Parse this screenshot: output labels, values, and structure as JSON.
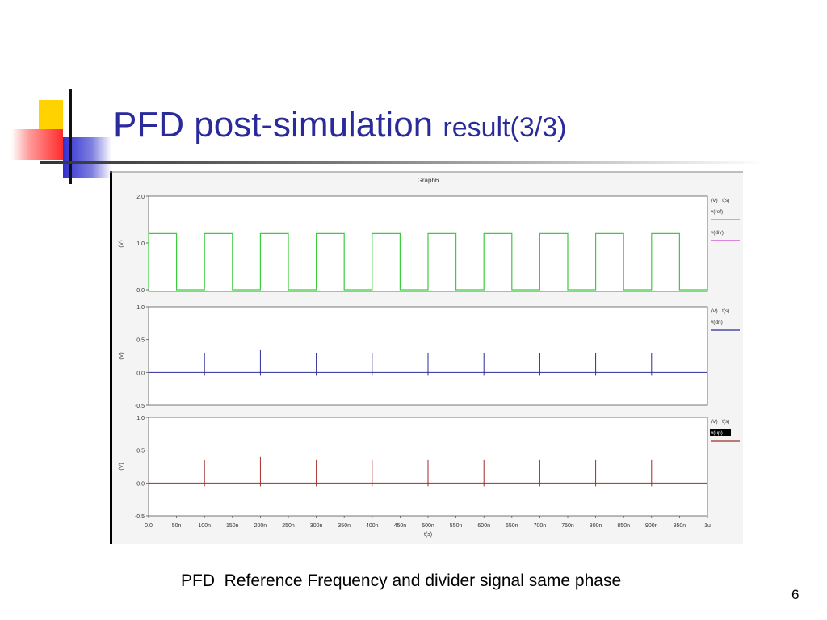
{
  "slide": {
    "title_main": "PFD post-simulation",
    "title_suffix": "result(3/3)",
    "caption": "PFD  Reference Frequency and divider signal same phase",
    "page_number": "6"
  },
  "colors": {
    "title": "#2a2a9a",
    "ref": "#3ccc3c",
    "div": "#cc44cc",
    "dn": "#2b2b99",
    "up": "#a52a2a"
  },
  "chart_data": {
    "type": "line",
    "title": "Graph6",
    "xlabel": "t(s)",
    "x_ticks": [
      "0.0",
      "50n",
      "100n",
      "150n",
      "200n",
      "250n",
      "300n",
      "350n",
      "400n",
      "450n",
      "500n",
      "550n",
      "600n",
      "650n",
      "700n",
      "750n",
      "800n",
      "850n",
      "900n",
      "950n",
      "1u"
    ],
    "xlim_ns": [
      0,
      1000
    ],
    "grid": false,
    "legend_position": "right",
    "panels": [
      {
        "ylabel": "(V)",
        "ylim": [
          0,
          2.0
        ],
        "y_ticks": [
          {
            "v": 2.0,
            "label": "2.0"
          },
          {
            "v": 1.0,
            "label": "1.0"
          },
          {
            "v": 0.0,
            "label": "0.0"
          }
        ],
        "legend_header": "(V) : t(s)",
        "series": [
          {
            "name": "v(ref)",
            "color": "#3ccc3c",
            "kind": "square",
            "period_ns": 100,
            "high_ns": 50,
            "first_rise_ns": 0,
            "low_v": 0.0,
            "high_v": 1.2
          },
          {
            "name": "v(div)",
            "color": "#cc44cc",
            "kind": "legend_only"
          }
        ]
      },
      {
        "ylabel": "(V)",
        "ylim": [
          -0.5,
          1.0
        ],
        "y_ticks": [
          {
            "v": 1.0,
            "label": "1.0"
          },
          {
            "v": 0.5,
            "label": "0.5"
          },
          {
            "v": 0.0,
            "label": "0.0"
          },
          {
            "v": -0.5,
            "label": "-0.5"
          }
        ],
        "legend_header": "(V) : t(s)",
        "series": [
          {
            "name": "v(dn)",
            "color": "#2b2b99",
            "kind": "spikes",
            "baseline_v": 0.0,
            "spikes": [
              {
                "t_ns": 100,
                "peak_v": 0.3,
                "trough_v": -0.05
              },
              {
                "t_ns": 200,
                "peak_v": 0.35,
                "trough_v": -0.05
              },
              {
                "t_ns": 300,
                "peak_v": 0.3,
                "trough_v": -0.05
              },
              {
                "t_ns": 400,
                "peak_v": 0.3,
                "trough_v": -0.05
              },
              {
                "t_ns": 500,
                "peak_v": 0.3,
                "trough_v": -0.05
              },
              {
                "t_ns": 600,
                "peak_v": 0.3,
                "trough_v": -0.05
              },
              {
                "t_ns": 700,
                "peak_v": 0.3,
                "trough_v": -0.05
              },
              {
                "t_ns": 800,
                "peak_v": 0.3,
                "trough_v": -0.05
              },
              {
                "t_ns": 900,
                "peak_v": 0.3,
                "trough_v": -0.05
              }
            ]
          }
        ]
      },
      {
        "ylabel": "(V)",
        "ylim": [
          -0.5,
          1.0
        ],
        "y_ticks": [
          {
            "v": 1.0,
            "label": "1.0"
          },
          {
            "v": 0.5,
            "label": "0.5"
          },
          {
            "v": 0.0,
            "label": "0.0"
          },
          {
            "v": -0.5,
            "label": "-0.5"
          }
        ],
        "legend_header": "(V) : t(s)",
        "series": [
          {
            "name": "v(up)",
            "color": "#a52a2a",
            "kind": "spikes",
            "baseline_v": 0.0,
            "spikes": [
              {
                "t_ns": 100,
                "peak_v": 0.35,
                "trough_v": -0.05
              },
              {
                "t_ns": 200,
                "peak_v": 0.4,
                "trough_v": -0.05
              },
              {
                "t_ns": 300,
                "peak_v": 0.35,
                "trough_v": -0.05
              },
              {
                "t_ns": 400,
                "peak_v": 0.35,
                "trough_v": -0.05
              },
              {
                "t_ns": 500,
                "peak_v": 0.35,
                "trough_v": -0.05
              },
              {
                "t_ns": 600,
                "peak_v": 0.35,
                "trough_v": -0.05
              },
              {
                "t_ns": 700,
                "peak_v": 0.35,
                "trough_v": -0.05
              },
              {
                "t_ns": 800,
                "peak_v": 0.35,
                "trough_v": -0.05
              },
              {
                "t_ns": 900,
                "peak_v": 0.35,
                "trough_v": -0.05
              }
            ]
          }
        ]
      }
    ]
  }
}
